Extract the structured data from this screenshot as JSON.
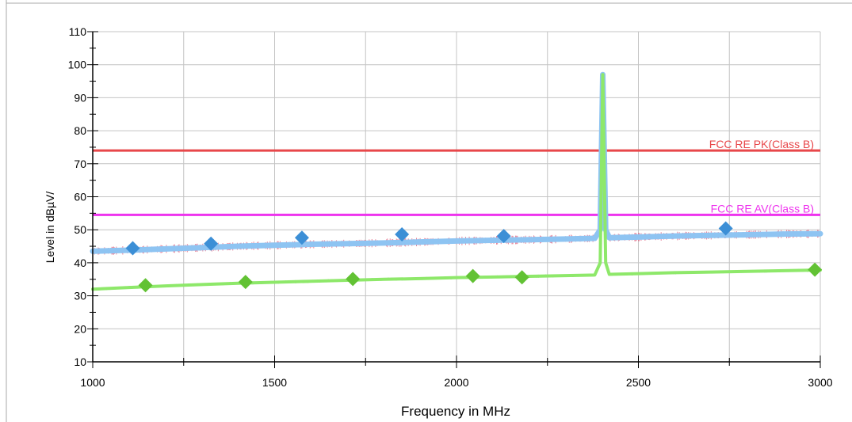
{
  "chart_data": {
    "type": "line",
    "title": "",
    "xlabel": "Frequency in MHz",
    "ylabel": "Level in dBµV/",
    "xlim": [
      1000,
      3000
    ],
    "ylim": [
      10,
      110
    ],
    "x_ticks": [
      1000,
      1500,
      2000,
      2500,
      3000
    ],
    "x_tick_labels": [
      "1000",
      "1500",
      "2000",
      "2500",
      "3000"
    ],
    "y_ticks": [
      10,
      20,
      30,
      40,
      50,
      60,
      70,
      80,
      90,
      100,
      110
    ],
    "y_tick_labels": [
      "10",
      "20",
      "30",
      "40",
      "50",
      "60",
      "70",
      "80",
      "90",
      "100",
      "110"
    ],
    "grid": true,
    "limit_lines": [
      {
        "name": "FCC RE PK(Class B)",
        "value": 74,
        "color": "#e8474a"
      },
      {
        "name": "FCC RE AV(Class B)",
        "value": 54.5,
        "color": "#ee33ee"
      }
    ],
    "series": [
      {
        "role": "peak-trace",
        "color": "#8ec4f2",
        "x": [
          1000,
          1100,
          1200,
          1300,
          1400,
          1500,
          1600,
          1700,
          1800,
          1900,
          2000,
          2100,
          2200,
          2300,
          2380,
          2395,
          2402,
          2410,
          2420,
          2500,
          2600,
          2700,
          2800,
          2900,
          3000
        ],
        "y": [
          43.5,
          43.8,
          44.2,
          44.6,
          45.0,
          45.3,
          45.6,
          45.8,
          46.0,
          46.3,
          46.6,
          46.8,
          47.0,
          47.2,
          47.4,
          50.0,
          97.0,
          50.0,
          47.6,
          47.8,
          48.1,
          48.3,
          48.5,
          48.7,
          48.8
        ]
      },
      {
        "role": "average-trace",
        "color": "#8ee86a",
        "x": [
          1000,
          1100,
          1200,
          1300,
          1400,
          1500,
          1600,
          1700,
          1800,
          1900,
          2000,
          2100,
          2200,
          2300,
          2380,
          2395,
          2402,
          2410,
          2420,
          2500,
          2600,
          2700,
          2800,
          2900,
          3000
        ],
        "y": [
          32.0,
          32.5,
          33.0,
          33.4,
          33.8,
          34.1,
          34.4,
          34.7,
          35.0,
          35.2,
          35.5,
          35.7,
          35.9,
          36.1,
          36.3,
          40.0,
          97.0,
          40.0,
          36.5,
          36.7,
          37.0,
          37.2,
          37.4,
          37.6,
          37.8
        ]
      }
    ],
    "markers": [
      {
        "role": "peak-markers",
        "color": "#3c8fd6",
        "points": [
          [
            1110,
            44.4
          ],
          [
            1325,
            45.8
          ],
          [
            1575,
            47.6
          ],
          [
            1850,
            48.6
          ],
          [
            2130,
            48.1
          ],
          [
            2740,
            50.4
          ]
        ]
      },
      {
        "role": "average-markers",
        "color": "#62c234",
        "points": [
          [
            1145,
            33.2
          ],
          [
            1420,
            34.2
          ],
          [
            1715,
            35.1
          ],
          [
            2045,
            36.0
          ],
          [
            2180,
            35.6
          ],
          [
            2985,
            37.9
          ]
        ]
      }
    ]
  }
}
